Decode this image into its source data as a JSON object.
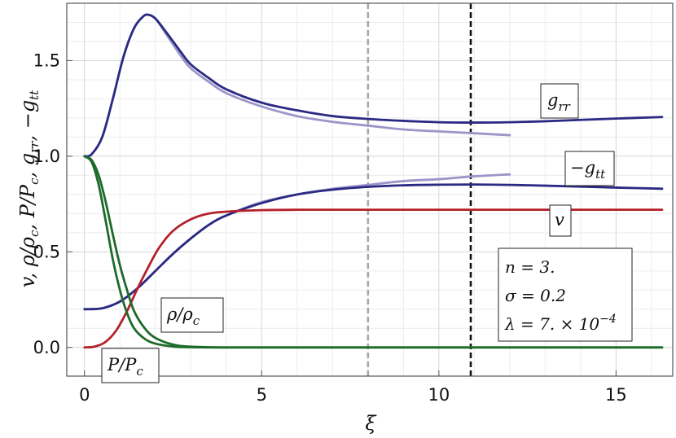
{
  "chart_data": {
    "type": "line",
    "xlabel": "ξ",
    "ylabel": "v,  ρ/ρc,  P/Pc,  grr,  −gtt",
    "xlim": [
      -0.5,
      16.6
    ],
    "ylim": [
      -0.15,
      1.8
    ],
    "x_ticks": [
      0,
      5,
      10,
      15
    ],
    "x_tick_labels": [
      "0",
      "5",
      "10",
      "15"
    ],
    "y_ticks": [
      0.0,
      0.5,
      1.0,
      1.5
    ],
    "y_tick_labels": [
      "0.0",
      "0.5",
      "1.0",
      "1.5"
    ],
    "grid": true,
    "vlines": [
      {
        "x": 8.0,
        "style": "dashed",
        "color": "#a8a8a8"
      },
      {
        "x": 10.9,
        "style": "dashed",
        "color": "#111111"
      }
    ],
    "series": [
      {
        "name": "grr",
        "color": "#9c95c8",
        "points": [
          [
            0,
            1.0
          ],
          [
            0.2,
            1.01
          ],
          [
            0.5,
            1.1
          ],
          [
            0.8,
            1.3
          ],
          [
            1.1,
            1.52
          ],
          [
            1.4,
            1.67
          ],
          [
            1.65,
            1.73
          ],
          [
            1.8,
            1.74
          ],
          [
            2.0,
            1.72
          ],
          [
            2.3,
            1.64
          ],
          [
            2.7,
            1.53
          ],
          [
            3.0,
            1.46
          ],
          [
            3.5,
            1.39
          ],
          [
            4.0,
            1.33
          ],
          [
            5.0,
            1.26
          ],
          [
            6.0,
            1.21
          ],
          [
            7.0,
            1.18
          ],
          [
            8.0,
            1.16
          ],
          [
            9.0,
            1.14
          ],
          [
            10.0,
            1.13
          ],
          [
            11.0,
            1.12
          ],
          [
            12.0,
            1.11
          ]
        ]
      },
      {
        "name": "grr",
        "color": "#2b2a83",
        "points": [
          [
            0,
            1.0
          ],
          [
            0.2,
            1.01
          ],
          [
            0.5,
            1.1
          ],
          [
            0.8,
            1.3
          ],
          [
            1.1,
            1.52
          ],
          [
            1.4,
            1.67
          ],
          [
            1.65,
            1.73
          ],
          [
            1.8,
            1.74
          ],
          [
            2.0,
            1.72
          ],
          [
            2.3,
            1.65
          ],
          [
            2.7,
            1.55
          ],
          [
            3.0,
            1.48
          ],
          [
            3.5,
            1.41
          ],
          [
            4.0,
            1.35
          ],
          [
            5.0,
            1.28
          ],
          [
            6.0,
            1.24
          ],
          [
            7.0,
            1.21
          ],
          [
            8.0,
            1.195
          ],
          [
            9.0,
            1.185
          ],
          [
            10.0,
            1.178
          ],
          [
            11.0,
            1.176
          ],
          [
            12.0,
            1.178
          ],
          [
            13.0,
            1.183
          ],
          [
            14.0,
            1.19
          ],
          [
            15.0,
            1.197
          ],
          [
            16.3,
            1.205
          ]
        ]
      },
      {
        "name": "−gtt",
        "color": "#9c95c8",
        "points": [
          [
            0,
            0.2
          ],
          [
            0.5,
            0.205
          ],
          [
            1.0,
            0.24
          ],
          [
            1.5,
            0.31
          ],
          [
            2.0,
            0.4
          ],
          [
            2.5,
            0.49
          ],
          [
            3.0,
            0.57
          ],
          [
            3.5,
            0.64
          ],
          [
            4.0,
            0.69
          ],
          [
            5.0,
            0.76
          ],
          [
            6.0,
            0.8
          ],
          [
            7.0,
            0.83
          ],
          [
            8.0,
            0.85
          ],
          [
            9.0,
            0.87
          ],
          [
            10.0,
            0.88
          ],
          [
            11.0,
            0.895
          ],
          [
            12.0,
            0.905
          ]
        ]
      },
      {
        "name": "−gtt",
        "color": "#2b2a83",
        "points": [
          [
            0,
            0.2
          ],
          [
            0.5,
            0.205
          ],
          [
            1.0,
            0.24
          ],
          [
            1.5,
            0.31
          ],
          [
            2.0,
            0.4
          ],
          [
            2.5,
            0.49
          ],
          [
            3.0,
            0.57
          ],
          [
            3.5,
            0.64
          ],
          [
            4.0,
            0.69
          ],
          [
            5.0,
            0.755
          ],
          [
            6.0,
            0.8
          ],
          [
            7.0,
            0.825
          ],
          [
            8.0,
            0.84
          ],
          [
            9.0,
            0.848
          ],
          [
            10.0,
            0.851
          ],
          [
            11.0,
            0.852
          ],
          [
            12.0,
            0.85
          ],
          [
            13.0,
            0.846
          ],
          [
            14.0,
            0.841
          ],
          [
            15.0,
            0.836
          ],
          [
            16.3,
            0.83
          ]
        ]
      },
      {
        "name": "v",
        "color": "#b5202a",
        "points": [
          [
            0,
            0.0
          ],
          [
            0.3,
            0.005
          ],
          [
            0.6,
            0.03
          ],
          [
            0.9,
            0.09
          ],
          [
            1.2,
            0.19
          ],
          [
            1.5,
            0.31
          ],
          [
            1.8,
            0.42
          ],
          [
            2.1,
            0.52
          ],
          [
            2.5,
            0.61
          ],
          [
            3.0,
            0.67
          ],
          [
            3.5,
            0.7
          ],
          [
            4.0,
            0.71
          ],
          [
            5.0,
            0.718
          ],
          [
            6.0,
            0.72
          ],
          [
            8.0,
            0.72
          ],
          [
            10.0,
            0.72
          ],
          [
            12.0,
            0.72
          ],
          [
            14.0,
            0.72
          ],
          [
            16.3,
            0.72
          ]
        ]
      },
      {
        "name": "P/Pc",
        "color": "#1c6b2a",
        "points": [
          [
            0,
            1.0
          ],
          [
            0.2,
            0.97
          ],
          [
            0.4,
            0.85
          ],
          [
            0.6,
            0.66
          ],
          [
            0.8,
            0.46
          ],
          [
            1.0,
            0.3
          ],
          [
            1.2,
            0.18
          ],
          [
            1.4,
            0.1
          ],
          [
            1.7,
            0.045
          ],
          [
            2.0,
            0.02
          ],
          [
            2.5,
            0.005
          ],
          [
            3.0,
            0.001
          ],
          [
            4.0,
            0.0
          ],
          [
            6.0,
            0.0
          ],
          [
            10.0,
            0.0
          ],
          [
            16.3,
            0.0
          ]
        ]
      },
      {
        "name": "ρ/ρc",
        "color": "#1c6b2a",
        "points": [
          [
            0,
            1.0
          ],
          [
            0.2,
            0.98
          ],
          [
            0.4,
            0.9
          ],
          [
            0.6,
            0.76
          ],
          [
            0.8,
            0.59
          ],
          [
            1.0,
            0.43
          ],
          [
            1.2,
            0.3
          ],
          [
            1.4,
            0.19
          ],
          [
            1.7,
            0.1
          ],
          [
            2.0,
            0.05
          ],
          [
            2.5,
            0.015
          ],
          [
            3.0,
            0.004
          ],
          [
            4.0,
            0.0
          ],
          [
            6.0,
            0.0
          ],
          [
            10.0,
            0.0
          ],
          [
            16.3,
            0.0
          ]
        ]
      }
    ],
    "annotations": [
      {
        "main": "g",
        "sub": "rr",
        "prefix": ""
      },
      {
        "main": "g",
        "sub": "tt",
        "prefix": "−"
      },
      {
        "main": "v",
        "sub": "",
        "prefix": ""
      },
      {
        "main": "ρ/ρ",
        "sub": "c",
        "prefix": ""
      },
      {
        "main": "P/P",
        "sub": "c",
        "prefix": ""
      }
    ],
    "parameters": [
      "n = 3.",
      "σ = 0.2",
      "λ = 7. × 10",
      "−4"
    ]
  }
}
